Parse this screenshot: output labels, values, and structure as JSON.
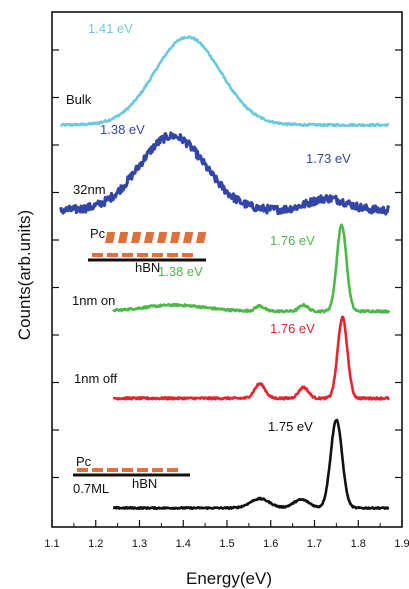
{
  "chart_data": {
    "type": "line",
    "xlabel": "Energy(eV)",
    "ylabel": "Counts(arb.units)",
    "xlim": [
      1.1,
      1.9
    ],
    "x_ticks": [
      "1.1",
      "1.2",
      "1.3",
      "1.4",
      "1.5",
      "1.6",
      "1.7",
      "1.8",
      "1.9"
    ],
    "grid": false,
    "legend": "none",
    "series": [
      {
        "name": "Bulk",
        "color": "#6cc8dc",
        "x_range": [
          1.12,
          1.87
        ],
        "baseline": 0,
        "peaks": [
          {
            "center": 1.41,
            "amplitude": 1.0,
            "width": 0.075
          }
        ],
        "noise": 0.012
      },
      {
        "name": "32nm",
        "color": "#3245a8",
        "x_range": [
          1.12,
          1.87
        ],
        "baseline": 0.02,
        "peaks": [
          {
            "center": 1.375,
            "amplitude": 0.93,
            "width": 0.075
          },
          {
            "center": 1.73,
            "amplitude": 0.15,
            "width": 0.045
          }
        ],
        "noise": 0.05
      },
      {
        "name": "1nm on",
        "color": "#4cb848",
        "x_range": [
          1.24,
          1.87
        ],
        "baseline": 0.02,
        "peaks": [
          {
            "center": 1.38,
            "amplitude": 0.07,
            "width": 0.07
          },
          {
            "center": 1.575,
            "amplitude": 0.06,
            "width": 0.01
          },
          {
            "center": 1.675,
            "amplitude": 0.07,
            "width": 0.01
          },
          {
            "center": 1.762,
            "amplitude": 0.98,
            "width": 0.011
          }
        ],
        "noise": 0.012
      },
      {
        "name": "1nm off",
        "color": "#e8232e",
        "x_range": [
          1.24,
          1.87
        ],
        "baseline": 0.02,
        "peaks": [
          {
            "center": 1.575,
            "amplitude": 0.17,
            "width": 0.012
          },
          {
            "center": 1.675,
            "amplitude": 0.13,
            "width": 0.011
          },
          {
            "center": 1.764,
            "amplitude": 0.95,
            "width": 0.011
          }
        ],
        "noise": 0.012
      },
      {
        "name": "0.7ML",
        "color": "#111111",
        "x_range": [
          1.24,
          1.87
        ],
        "baseline": 0.0,
        "peaks": [
          {
            "center": 1.575,
            "amplitude": 0.1,
            "width": 0.022
          },
          {
            "center": 1.67,
            "amplitude": 0.09,
            "width": 0.018
          },
          {
            "center": 1.75,
            "amplitude": 0.95,
            "width": 0.013
          }
        ],
        "noise": 0.008
      }
    ],
    "annotations": {
      "bulk_peak": {
        "text": "1.41 eV",
        "color": "#6cc8dc"
      },
      "nm32_peak1": {
        "text": "1.38 eV",
        "color": "#3245a8"
      },
      "nm32_peak2": {
        "text": "1.73 eV",
        "color": "#3245a8"
      },
      "on_peak_high": {
        "text": "1.76 eV",
        "color": "#4cb848"
      },
      "on_peak_low": {
        "text": "1.38 eV",
        "color": "#4cb848"
      },
      "off_peak": {
        "text": "1.76 eV",
        "color": "#e8232e"
      },
      "ml_peak": {
        "text": "1.75 eV",
        "color": "#111111"
      }
    },
    "insets": [
      {
        "molecule_label": "Pc",
        "substrate_label": "hBN",
        "arrangement": "tilted",
        "molecule_color": "#e0703a"
      },
      {
        "molecule_label": "Pc",
        "substrate_label": "hBN",
        "arrangement": "flat",
        "molecule_color": "#e0703a"
      }
    ]
  }
}
